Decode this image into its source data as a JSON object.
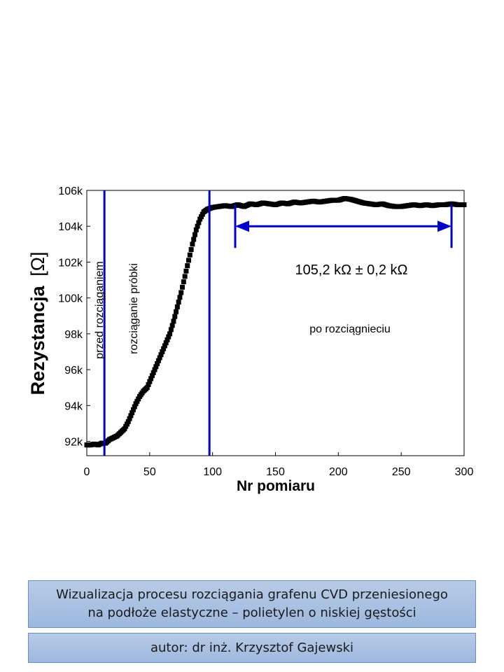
{
  "chart_data": {
    "type": "scatter",
    "xlabel": "Nr pomiaru",
    "ylabel_text": "Rezystancja",
    "ylabel_unit": "[Ω]",
    "xlim": [
      0,
      300
    ],
    "ylim": [
      91.2,
      106
    ],
    "x_ticks": [
      0,
      50,
      100,
      150,
      200,
      250,
      300
    ],
    "x_tick_labels": [
      "0",
      "50",
      "100",
      "150",
      "200",
      "250",
      "300"
    ],
    "y_ticks": [
      92,
      94,
      96,
      98,
      100,
      102,
      104,
      106
    ],
    "y_tick_labels": [
      "92k",
      "94k",
      "96k",
      "98k",
      "100k",
      "102k",
      "104k",
      "106k"
    ],
    "marker_color": "#000000",
    "line_color": "#0000cc",
    "vertical_lines_x": [
      14,
      97.5
    ],
    "range_arrow": {
      "x_start": 118,
      "x_end": 290,
      "y": 104.0
    },
    "annotations": {
      "before": "przed rozciąganiem",
      "stretching": "rozciąganie próbki",
      "value": "105,2 kΩ ± 0,2 kΩ",
      "after": "po rozciągnieciu"
    },
    "series": [
      {
        "unit": "kΩ",
        "points": [
          [
            0,
            91.8
          ],
          [
            3,
            91.8
          ],
          [
            6,
            91.85
          ],
          [
            9,
            91.8
          ],
          [
            12,
            91.9
          ],
          [
            15,
            91.9
          ],
          [
            18,
            92.1
          ],
          [
            21,
            92.2
          ],
          [
            24,
            92.3
          ],
          [
            27,
            92.5
          ],
          [
            30,
            92.7
          ],
          [
            33,
            93.1
          ],
          [
            36,
            93.6
          ],
          [
            39,
            94.1
          ],
          [
            42,
            94.5
          ],
          [
            45,
            94.8
          ],
          [
            48,
            95.0
          ],
          [
            51,
            95.5
          ],
          [
            54,
            96.0
          ],
          [
            57,
            96.5
          ],
          [
            60,
            97.0
          ],
          [
            63,
            97.5
          ],
          [
            66,
            98.0
          ],
          [
            69,
            98.7
          ],
          [
            72,
            99.5
          ],
          [
            75,
            100.3
          ],
          [
            78,
            101.2
          ],
          [
            81,
            102.1
          ],
          [
            84,
            103.0
          ],
          [
            87,
            103.8
          ],
          [
            90,
            104.4
          ],
          [
            93,
            104.8
          ],
          [
            96,
            104.95
          ],
          [
            100,
            105.05
          ],
          [
            105,
            105.1
          ],
          [
            110,
            105.15
          ],
          [
            115,
            105.1
          ],
          [
            120,
            105.2
          ],
          [
            125,
            105.1
          ],
          [
            130,
            105.25
          ],
          [
            135,
            105.2
          ],
          [
            140,
            105.3
          ],
          [
            145,
            105.25
          ],
          [
            150,
            105.2
          ],
          [
            155,
            105.3
          ],
          [
            160,
            105.25
          ],
          [
            165,
            105.35
          ],
          [
            170,
            105.3
          ],
          [
            175,
            105.35
          ],
          [
            180,
            105.4
          ],
          [
            185,
            105.35
          ],
          [
            190,
            105.4
          ],
          [
            195,
            105.45
          ],
          [
            200,
            105.45
          ],
          [
            205,
            105.55
          ],
          [
            210,
            105.5
          ],
          [
            215,
            105.4
          ],
          [
            220,
            105.3
          ],
          [
            225,
            105.25
          ],
          [
            230,
            105.2
          ],
          [
            235,
            105.25
          ],
          [
            240,
            105.15
          ],
          [
            245,
            105.1
          ],
          [
            250,
            105.1
          ],
          [
            255,
            105.15
          ],
          [
            260,
            105.2
          ],
          [
            265,
            105.15
          ],
          [
            270,
            105.2
          ],
          [
            275,
            105.15
          ],
          [
            280,
            105.2
          ],
          [
            285,
            105.2
          ],
          [
            290,
            105.25
          ],
          [
            295,
            105.2
          ],
          [
            300,
            105.2
          ]
        ]
      }
    ]
  },
  "caption": {
    "line1": "Wizualizacja procesu rozciągania grafenu CVD przeniesionego",
    "line2": "na podłoże elastyczne – polietylen o niskiej gęstości",
    "author": "autor: dr inż. Krzysztof Gajewski"
  }
}
